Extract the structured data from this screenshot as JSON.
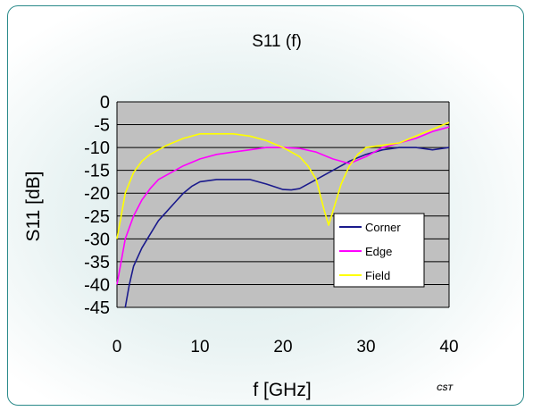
{
  "chart_data": {
    "type": "line",
    "title": "S11 (f)",
    "xlabel": "f [GHz]",
    "ylabel": "S11 [dB]",
    "xlim": [
      0,
      40
    ],
    "ylim": [
      -45,
      0
    ],
    "x_ticks": [
      0,
      10,
      20,
      30,
      40
    ],
    "y_ticks": [
      0,
      -5,
      -10,
      -15,
      -20,
      -25,
      -30,
      -35,
      -40,
      -45
    ],
    "grid": "horizontal",
    "plot_background": "#c0c0c0",
    "legend_position": "lower-right",
    "series": [
      {
        "name": "Corner",
        "color": "#1a1a8c",
        "points": [
          [
            1,
            -45
          ],
          [
            1.5,
            -40
          ],
          [
            2,
            -36
          ],
          [
            3,
            -32
          ],
          [
            4,
            -29
          ],
          [
            5,
            -26
          ],
          [
            6,
            -24
          ],
          [
            7,
            -22
          ],
          [
            8,
            -20
          ],
          [
            9,
            -18.5
          ],
          [
            10,
            -17.5
          ],
          [
            12,
            -17
          ],
          [
            14,
            -17
          ],
          [
            16,
            -17
          ],
          [
            18,
            -18
          ],
          [
            20,
            -19.2
          ],
          [
            21,
            -19.3
          ],
          [
            22,
            -19
          ],
          [
            24,
            -17
          ],
          [
            26,
            -15
          ],
          [
            28,
            -13
          ],
          [
            30,
            -11.5
          ],
          [
            32,
            -10.5
          ],
          [
            34,
            -10
          ],
          [
            36,
            -10
          ],
          [
            38,
            -10.5
          ],
          [
            40,
            -10
          ]
        ]
      },
      {
        "name": "Edge",
        "color": "#ff00ff",
        "points": [
          [
            0,
            -40
          ],
          [
            0.5,
            -35
          ],
          [
            1,
            -30
          ],
          [
            2,
            -25
          ],
          [
            3,
            -21.5
          ],
          [
            4,
            -19
          ],
          [
            5,
            -17
          ],
          [
            6,
            -16
          ],
          [
            7,
            -15
          ],
          [
            8,
            -14
          ],
          [
            10,
            -12.5
          ],
          [
            12,
            -11.5
          ],
          [
            14,
            -11
          ],
          [
            16,
            -10.5
          ],
          [
            18,
            -10
          ],
          [
            20,
            -10
          ],
          [
            22,
            -10.2
          ],
          [
            24,
            -11
          ],
          [
            26,
            -12.5
          ],
          [
            28,
            -13.5
          ],
          [
            30,
            -12
          ],
          [
            32,
            -10
          ],
          [
            34,
            -9
          ],
          [
            36,
            -8
          ],
          [
            38,
            -6.5
          ],
          [
            40,
            -5.5
          ]
        ]
      },
      {
        "name": "Field",
        "color": "#ffff00",
        "points": [
          [
            0,
            -30
          ],
          [
            0.5,
            -25
          ],
          [
            1,
            -20
          ],
          [
            2,
            -15.5
          ],
          [
            3,
            -13
          ],
          [
            4,
            -11.5
          ],
          [
            5,
            -10.5
          ],
          [
            6,
            -9.5
          ],
          [
            8,
            -8
          ],
          [
            10,
            -7
          ],
          [
            12,
            -7
          ],
          [
            14,
            -7
          ],
          [
            16,
            -7.5
          ],
          [
            18,
            -8.5
          ],
          [
            20,
            -10
          ],
          [
            22,
            -12
          ],
          [
            23,
            -14
          ],
          [
            24,
            -17
          ],
          [
            25,
            -24
          ],
          [
            25.5,
            -27
          ],
          [
            26,
            -24
          ],
          [
            27,
            -18
          ],
          [
            28,
            -14
          ],
          [
            29,
            -11.5
          ],
          [
            30,
            -10
          ],
          [
            32,
            -9.5
          ],
          [
            34,
            -9
          ],
          [
            36,
            -7.5
          ],
          [
            38,
            -6
          ],
          [
            40,
            -4.5
          ]
        ]
      }
    ]
  },
  "watermark": "CST"
}
